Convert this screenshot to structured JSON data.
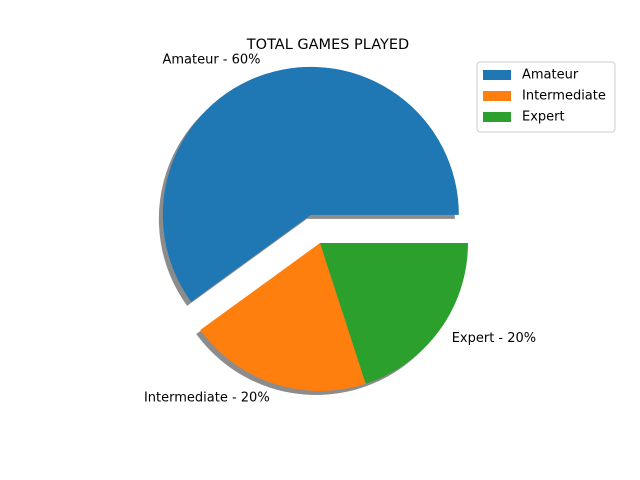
{
  "chart_data": {
    "type": "pie",
    "title": "TOTAL GAMES PLAYED",
    "categories": [
      "Amateur",
      "Intermediate",
      "Expert"
    ],
    "values": [
      60,
      20,
      20
    ],
    "slice_labels": [
      "Amateur - 60%",
      "Intermediate - 20%",
      "Expert - 20%"
    ],
    "colors": [
      "#1f77b4",
      "#ff7f0e",
      "#2ca02c"
    ],
    "exploded": [
      "Amateur"
    ],
    "shadow": true,
    "legend": {
      "placement": "top-right",
      "entries": [
        "Amateur",
        "Intermediate",
        "Expert"
      ]
    }
  }
}
